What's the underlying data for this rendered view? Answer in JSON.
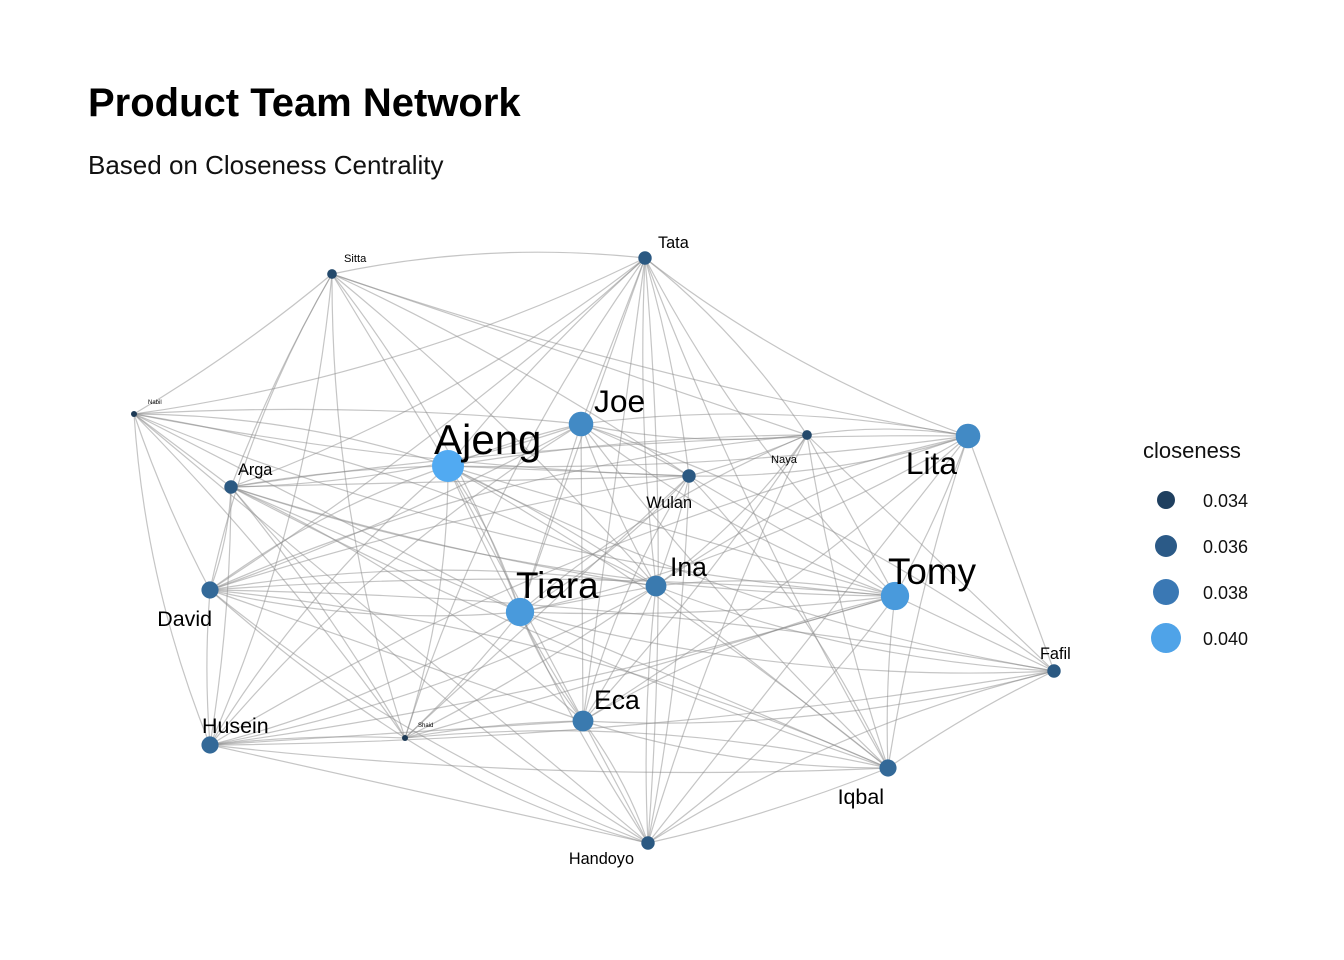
{
  "title": "Product Team Network",
  "subtitle": "Based on Closeness Centrality",
  "legend": {
    "title": "closeness",
    "items": [
      {
        "label": "0.034",
        "color": "#1f3f5f"
      },
      {
        "label": "0.036",
        "color": "#2b5a87"
      },
      {
        "label": "0.038",
        "color": "#3a78b4"
      },
      {
        "label": "0.040",
        "color": "#4fa3e8"
      }
    ]
  },
  "nodes": [
    {
      "id": "Sitta",
      "closeness": 0.034
    },
    {
      "id": "Tata",
      "closeness": 0.035
    },
    {
      "id": "Nabil",
      "closeness": 0.033
    },
    {
      "id": "Joe",
      "closeness": 0.038
    },
    {
      "id": "Ajeng",
      "closeness": 0.04
    },
    {
      "id": "Naya",
      "closeness": 0.034
    },
    {
      "id": "Lita",
      "closeness": 0.038
    },
    {
      "id": "Arga",
      "closeness": 0.035
    },
    {
      "id": "Wulan",
      "closeness": 0.035
    },
    {
      "id": "David",
      "closeness": 0.036
    },
    {
      "id": "Tiara",
      "closeness": 0.039
    },
    {
      "id": "Ina",
      "closeness": 0.037
    },
    {
      "id": "Tomy",
      "closeness": 0.039
    },
    {
      "id": "Fafil",
      "closeness": 0.035
    },
    {
      "id": "Eca",
      "closeness": 0.037
    },
    {
      "id": "Husein",
      "closeness": 0.036
    },
    {
      "id": "Shaid",
      "closeness": 0.033
    },
    {
      "id": "Iqbal",
      "closeness": 0.036
    },
    {
      "id": "Handoyo",
      "closeness": 0.035
    }
  ],
  "edges": [
    [
      "Sitta",
      "Tata"
    ],
    [
      "Sitta",
      "Nabil"
    ],
    [
      "Sitta",
      "Ajeng"
    ],
    [
      "Sitta",
      "Arga"
    ],
    [
      "Sitta",
      "David"
    ],
    [
      "Sitta",
      "Tiara"
    ],
    [
      "Sitta",
      "Wulan"
    ],
    [
      "Sitta",
      "Naya"
    ],
    [
      "Sitta",
      "Lita"
    ],
    [
      "Sitta",
      "Shaid"
    ],
    [
      "Sitta",
      "Husein"
    ],
    [
      "Sitta",
      "Ina"
    ],
    [
      "Tata",
      "Joe"
    ],
    [
      "Tata",
      "Ajeng"
    ],
    [
      "Tata",
      "Lita"
    ],
    [
      "Tata",
      "Naya"
    ],
    [
      "Tata",
      "Wulan"
    ],
    [
      "Tata",
      "Tiara"
    ],
    [
      "Tata",
      "Ina"
    ],
    [
      "Tata",
      "Tomy"
    ],
    [
      "Tata",
      "Arga"
    ],
    [
      "Tata",
      "David"
    ],
    [
      "Tata",
      "Eca"
    ],
    [
      "Tata",
      "Iqbal"
    ],
    [
      "Tata",
      "Shaid"
    ],
    [
      "Tata",
      "Nabil"
    ],
    [
      "Tata",
      "Handoyo"
    ],
    [
      "Nabil",
      "Arga"
    ],
    [
      "Nabil",
      "David"
    ],
    [
      "Nabil",
      "Husein"
    ],
    [
      "Nabil",
      "Ajeng"
    ],
    [
      "Nabil",
      "Joe"
    ],
    [
      "Nabil",
      "Tiara"
    ],
    [
      "Nabil",
      "Wulan"
    ],
    [
      "Nabil",
      "Tomy"
    ],
    [
      "Nabil",
      "Ina"
    ],
    [
      "Nabil",
      "Shaid"
    ],
    [
      "Nabil",
      "Handoyo"
    ],
    [
      "Joe",
      "Ajeng"
    ],
    [
      "Joe",
      "Naya"
    ],
    [
      "Joe",
      "Lita"
    ],
    [
      "Joe",
      "Wulan"
    ],
    [
      "Joe",
      "Tiara"
    ],
    [
      "Joe",
      "Ina"
    ],
    [
      "Joe",
      "Tomy"
    ],
    [
      "Joe",
      "Arga"
    ],
    [
      "Joe",
      "David"
    ],
    [
      "Joe",
      "Eca"
    ],
    [
      "Joe",
      "Iqbal"
    ],
    [
      "Joe",
      "Husein"
    ],
    [
      "Joe",
      "Fafil"
    ],
    [
      "Ajeng",
      "Naya"
    ],
    [
      "Ajeng",
      "Wulan"
    ],
    [
      "Ajeng",
      "Arga"
    ],
    [
      "Ajeng",
      "David"
    ],
    [
      "Ajeng",
      "Tiara"
    ],
    [
      "Ajeng",
      "Ina"
    ],
    [
      "Ajeng",
      "Tomy"
    ],
    [
      "Ajeng",
      "Eca"
    ],
    [
      "Ajeng",
      "Husein"
    ],
    [
      "Ajeng",
      "Shaid"
    ],
    [
      "Ajeng",
      "Iqbal"
    ],
    [
      "Ajeng",
      "Handoyo"
    ],
    [
      "Ajeng",
      "Lita"
    ],
    [
      "Ajeng",
      "Fafil"
    ],
    [
      "Naya",
      "Lita"
    ],
    [
      "Naya",
      "Wulan"
    ],
    [
      "Naya",
      "Tomy"
    ],
    [
      "Naya",
      "Iqbal"
    ],
    [
      "Naya",
      "Tiara"
    ],
    [
      "Naya",
      "Ina"
    ],
    [
      "Naya",
      "Eca"
    ],
    [
      "Naya",
      "Fafil"
    ],
    [
      "Naya",
      "Handoyo"
    ],
    [
      "Naya",
      "David"
    ],
    [
      "Lita",
      "Wulan"
    ],
    [
      "Lita",
      "Tomy"
    ],
    [
      "Lita",
      "Fafil"
    ],
    [
      "Lita",
      "Iqbal"
    ],
    [
      "Lita",
      "Ina"
    ],
    [
      "Lita",
      "Tiara"
    ],
    [
      "Lita",
      "Eca"
    ],
    [
      "Lita",
      "Handoyo"
    ],
    [
      "Lita",
      "Arga"
    ],
    [
      "Lita",
      "Husein"
    ],
    [
      "Arga",
      "David"
    ],
    [
      "Arga",
      "Husein"
    ],
    [
      "Arga",
      "Tiara"
    ],
    [
      "Arga",
      "Ina"
    ],
    [
      "Arga",
      "Tomy"
    ],
    [
      "Arga",
      "Eca"
    ],
    [
      "Arga",
      "Shaid"
    ],
    [
      "Arga",
      "Wulan"
    ],
    [
      "Arga",
      "Iqbal"
    ],
    [
      "Arga",
      "Handoyo"
    ],
    [
      "Wulan",
      "Tiara"
    ],
    [
      "Wulan",
      "Ina"
    ],
    [
      "Wulan",
      "Tomy"
    ],
    [
      "Wulan",
      "David"
    ],
    [
      "Wulan",
      "Eca"
    ],
    [
      "Wulan",
      "Iqbal"
    ],
    [
      "Wulan",
      "Handoyo"
    ],
    [
      "Wulan",
      "Shaid"
    ],
    [
      "David",
      "Husein"
    ],
    [
      "David",
      "Tiara"
    ],
    [
      "David",
      "Ina"
    ],
    [
      "David",
      "Tomy"
    ],
    [
      "David",
      "Eca"
    ],
    [
      "David",
      "Shaid"
    ],
    [
      "David",
      "Handoyo"
    ],
    [
      "David",
      "Iqbal"
    ],
    [
      "David",
      "Fafil"
    ],
    [
      "Tiara",
      "Ina"
    ],
    [
      "Tiara",
      "Tomy"
    ],
    [
      "Tiara",
      "Eca"
    ],
    [
      "Tiara",
      "Husein"
    ],
    [
      "Tiara",
      "Shaid"
    ],
    [
      "Tiara",
      "Iqbal"
    ],
    [
      "Tiara",
      "Handoyo"
    ],
    [
      "Tiara",
      "Fafil"
    ],
    [
      "Ina",
      "Tomy"
    ],
    [
      "Ina",
      "Eca"
    ],
    [
      "Ina",
      "Iqbal"
    ],
    [
      "Ina",
      "Handoyo"
    ],
    [
      "Ina",
      "Fafil"
    ],
    [
      "Ina",
      "Husein"
    ],
    [
      "Ina",
      "Shaid"
    ],
    [
      "Tomy",
      "Fafil"
    ],
    [
      "Tomy",
      "Iqbal"
    ],
    [
      "Tomy",
      "Eca"
    ],
    [
      "Tomy",
      "Handoyo"
    ],
    [
      "Tomy",
      "Husein"
    ],
    [
      "Tomy",
      "Shaid"
    ],
    [
      "Fafil",
      "Iqbal"
    ],
    [
      "Fafil",
      "Handoyo"
    ],
    [
      "Fafil",
      "Eca"
    ],
    [
      "Fafil",
      "Husein"
    ],
    [
      "Eca",
      "Husein"
    ],
    [
      "Eca",
      "Shaid"
    ],
    [
      "Eca",
      "Iqbal"
    ],
    [
      "Eca",
      "Handoyo"
    ],
    [
      "Husein",
      "Shaid"
    ],
    [
      "Husein",
      "Handoyo"
    ],
    [
      "Husein",
      "Iqbal"
    ],
    [
      "Shaid",
      "Handoyo"
    ],
    [
      "Shaid",
      "Iqbal"
    ],
    [
      "Iqbal",
      "Handoyo"
    ]
  ]
}
